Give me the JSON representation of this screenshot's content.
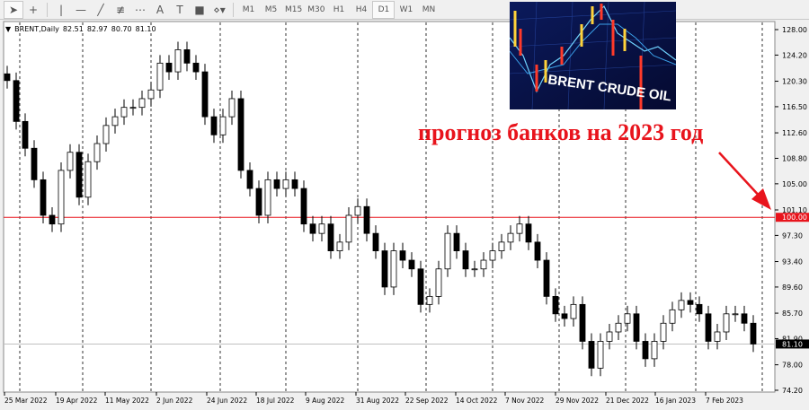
{
  "toolbar": {
    "tools": [
      "cursor-icon",
      "crosshair-icon",
      "vertical-line-icon",
      "horizontal-line-icon",
      "trendline-icon",
      "fibonacci-icon",
      "grid-fibo-icon",
      "text-icon",
      "text-label-icon",
      "rectangle-icon",
      "shapes-menu-icon"
    ],
    "text_tool": "A",
    "timeframes": [
      "M1",
      "M5",
      "M15",
      "M30",
      "H1",
      "H4",
      "D1",
      "W1",
      "MN"
    ],
    "active_timeframe": "D1"
  },
  "symbol_info": {
    "symbol": "BRENT,Daily",
    "open": "82.51",
    "high": "82.97",
    "low": "80.70",
    "close": "81.10"
  },
  "overlay": {
    "forecast_text": "прогноз банков на 2023 год",
    "image_text": "BRENT CRUDE OIL",
    "forecast_color": "#e8141c"
  },
  "chart_data": {
    "type": "candlestick",
    "ylim": [
      74.2,
      128.0
    ],
    "y_ticks": [
      "128.00",
      "124.20",
      "120.30",
      "116.50",
      "112.60",
      "108.80",
      "105.00",
      "101.10",
      "97.30",
      "93.40",
      "89.60",
      "85.70",
      "81.90",
      "78.00",
      "74.20"
    ],
    "x_ticks": [
      "25 Mar 2022",
      "19 Apr 2022",
      "11 May 2022",
      "2 Jun 2022",
      "24 Jun 2022",
      "18 Jul 2022",
      "9 Aug 2022",
      "31 Aug 2022",
      "22 Sep 2022",
      "14 Oct 2022",
      "7 Nov 2022",
      "29 Nov 2022",
      "21 Dec 2022",
      "16 Jan 2023",
      "7 Feb 2023"
    ],
    "closes": [
      120.4,
      114.3,
      110.3,
      105.6,
      100.3,
      99,
      107,
      109.7,
      103,
      108.3,
      111,
      113.7,
      115,
      116.4,
      116.4,
      117.7,
      119,
      123,
      121.7,
      125,
      123,
      121.7,
      115,
      112.3,
      115,
      117.7,
      107,
      104.3,
      100.3,
      105.6,
      104.3,
      105.6,
      104.3,
      99,
      97.6,
      99,
      95,
      96.3,
      100.3,
      101.6,
      97.6,
      95,
      89.6,
      95,
      93.6,
      92.3,
      87,
      88.2,
      92.3,
      97.6,
      95,
      92.3,
      92.3,
      93.6,
      95,
      96.3,
      97.6,
      99,
      96.3,
      93.6,
      88.2,
      85.6,
      84.9,
      87,
      81.5,
      77.5,
      81.5,
      82.9,
      84.2,
      85.6,
      81.5,
      78.9,
      81.5,
      84.2,
      86.2,
      87.6,
      87,
      85.6,
      81.5,
      82.9,
      85.6,
      85.6,
      84.2,
      81.1
    ],
    "level_line": {
      "value": 100.0,
      "label": "100.00",
      "color": "#e8141c"
    },
    "current_price": {
      "value": 81.1,
      "label": "81.10"
    }
  }
}
